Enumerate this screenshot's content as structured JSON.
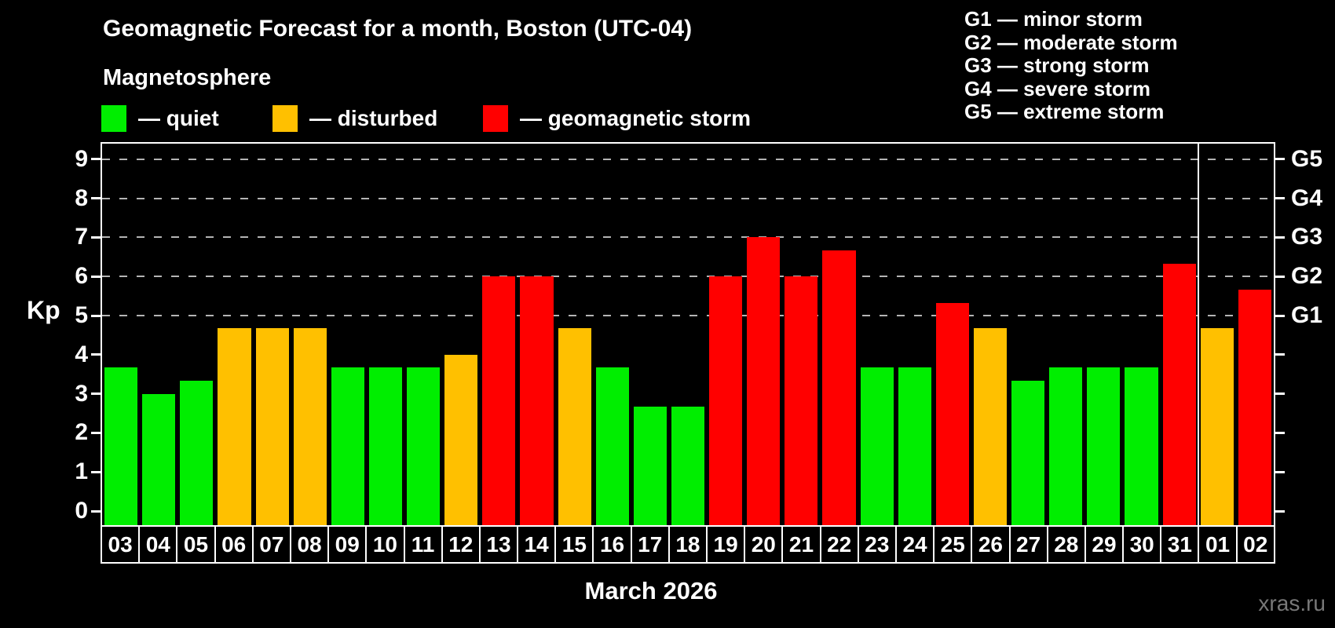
{
  "title": "Geomagnetic Forecast for a month, Boston (UTC-04)",
  "subtitle": "Magnetosphere",
  "watermark": "xras.ru",
  "colors": {
    "background": "#000000",
    "text": "#ffffff",
    "grid": "#b4b4b4",
    "frame": "#ffffff",
    "watermark_text": "#787878",
    "quiet": "#00ee00",
    "disturbed": "#ffc000",
    "storm": "#ff0000"
  },
  "legend": {
    "items": [
      {
        "status": "quiet",
        "label": "— quiet"
      },
      {
        "status": "disturbed",
        "label": "— disturbed"
      },
      {
        "status": "storm",
        "label": "— geomagnetic storm"
      }
    ]
  },
  "storm_scale": [
    "G1 — minor storm",
    "G2 — moderate storm",
    "G3 — strong storm",
    "G4 — severe storm",
    "G5 — extreme storm"
  ],
  "axes": {
    "y_label": "Kp",
    "y_ticks": [
      0,
      1,
      2,
      3,
      4,
      5,
      6,
      7,
      8,
      9
    ],
    "right_labels": [
      {
        "kp": 5,
        "label": "G1"
      },
      {
        "kp": 6,
        "label": "G2"
      },
      {
        "kp": 7,
        "label": "G3"
      },
      {
        "kp": 8,
        "label": "G4"
      },
      {
        "kp": 9,
        "label": "G5"
      }
    ],
    "x_label": "March 2026"
  },
  "chart_data": {
    "type": "bar",
    "title": "Geomagnetic Forecast for a month, Boston (UTC-04)",
    "xlabel": "March 2026",
    "ylabel": "Kp",
    "ylim": [
      0,
      9
    ],
    "grid_on": true,
    "grid_kp_levels": [
      5,
      6,
      7,
      8,
      9
    ],
    "legend_position": "top",
    "categories": [
      "03",
      "04",
      "05",
      "06",
      "07",
      "08",
      "09",
      "10",
      "11",
      "12",
      "13",
      "14",
      "15",
      "16",
      "17",
      "18",
      "19",
      "20",
      "21",
      "22",
      "23",
      "24",
      "25",
      "26",
      "27",
      "28",
      "29",
      "30",
      "31",
      "01",
      "02"
    ],
    "values": [
      3.67,
      3.0,
      3.33,
      4.67,
      4.67,
      4.67,
      3.67,
      3.67,
      3.67,
      4.0,
      6.0,
      6.0,
      4.67,
      3.67,
      2.67,
      2.67,
      6.0,
      7.0,
      6.0,
      6.67,
      3.67,
      3.67,
      5.33,
      4.67,
      3.33,
      3.67,
      3.67,
      3.67,
      6.33,
      4.67,
      5.67
    ],
    "statuses": [
      "quiet",
      "quiet",
      "quiet",
      "disturbed",
      "disturbed",
      "disturbed",
      "quiet",
      "quiet",
      "quiet",
      "disturbed",
      "storm",
      "storm",
      "disturbed",
      "quiet",
      "quiet",
      "quiet",
      "storm",
      "storm",
      "storm",
      "storm",
      "quiet",
      "quiet",
      "storm",
      "disturbed",
      "quiet",
      "quiet",
      "quiet",
      "quiet",
      "storm",
      "disturbed",
      "storm"
    ],
    "month_separator_after": "31"
  }
}
